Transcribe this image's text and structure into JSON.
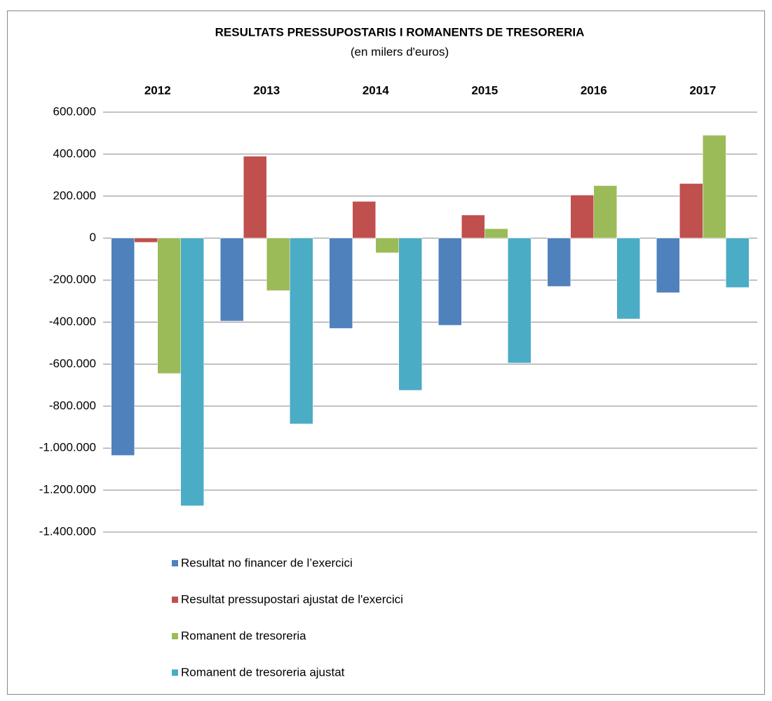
{
  "chart_data": {
    "type": "bar",
    "title": "RESULTATS PRESSUPOSTARIS I ROMANENTS DE TRESORERIA",
    "subtitle": "(en milers d'euros)",
    "categories": [
      "2012",
      "2013",
      "2014",
      "2015",
      "2016",
      "2017"
    ],
    "series": [
      {
        "name": "Resultat no financer de l’exercici",
        "color": "#4f81bd",
        "values": [
          -1035000,
          -395000,
          -430000,
          -415000,
          -230000,
          -260000
        ]
      },
      {
        "name": "Resultat pressupostari ajustat de l'exercici",
        "color": "#c0504d",
        "values": [
          -20000,
          390000,
          175000,
          110000,
          205000,
          260000
        ]
      },
      {
        "name": "Romanent de tresoreria",
        "color": "#9bbb59",
        "values": [
          -645000,
          -250000,
          -70000,
          45000,
          250000,
          490000
        ]
      },
      {
        "name": "Romanent de tresoreria ajustat",
        "color": "#4bacc6",
        "values": [
          -1275000,
          -885000,
          -725000,
          -595000,
          -385000,
          -235000
        ]
      }
    ],
    "ylim": [
      -1400000,
      600000
    ],
    "yticks": [
      {
        "value": 600000,
        "label": "600.000"
      },
      {
        "value": 400000,
        "label": "400.000"
      },
      {
        "value": 200000,
        "label": "200.000"
      },
      0,
      {
        "value": -200000,
        "label": "-200.000"
      },
      {
        "value": -400000,
        "label": "-400.000"
      },
      {
        "value": -600000,
        "label": "-600.000"
      },
      {
        "value": -800000,
        "label": "-800.000"
      },
      {
        "value": -1000000,
        "label": "-1.000.000"
      },
      {
        "value": -1200000,
        "label": "-1.200.000"
      },
      {
        "value": -1400000,
        "label": "-1.400.000"
      }
    ],
    "grid": true
  }
}
